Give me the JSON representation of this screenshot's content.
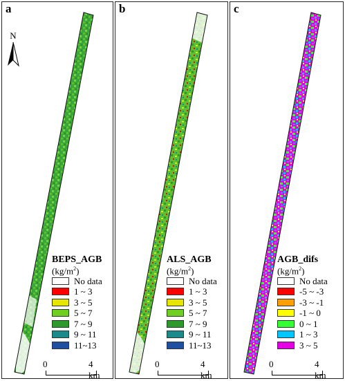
{
  "panels": [
    {
      "letter": "a",
      "legend_title": "BEPS_AGB",
      "legend_unit_base": "(kg/m",
      "legend_unit_sup": "2",
      "legend_unit_close": ")",
      "legend_items": [
        {
          "label": "No data",
          "color": "#ffffff"
        },
        {
          "label": "1 ~ 3",
          "color": "#ff0000"
        },
        {
          "label": "3 ~ 5",
          "color": "#e6e600"
        },
        {
          "label": "5 ~ 7",
          "color": "#70d020"
        },
        {
          "label": "7 ~ 9",
          "color": "#2e9a2e"
        },
        {
          "label": "9 ~ 11",
          "color": "#1a8a8a"
        },
        {
          "label": "11~13",
          "color": "#1f4fa0"
        }
      ],
      "scale": {
        "start": "0",
        "end": "4 km"
      }
    },
    {
      "letter": "b",
      "legend_title": "ALS_AGB",
      "legend_unit_base": "(kg/m",
      "legend_unit_sup": "2",
      "legend_unit_close": ")",
      "legend_items": [
        {
          "label": "No data",
          "color": "#ffffff"
        },
        {
          "label": "1 ~ 3",
          "color": "#ff0000"
        },
        {
          "label": "3 ~ 5",
          "color": "#e6e600"
        },
        {
          "label": "5 ~ 7",
          "color": "#70d020"
        },
        {
          "label": "7 ~ 9",
          "color": "#2e9a2e"
        },
        {
          "label": "9 ~ 11",
          "color": "#1a8a8a"
        },
        {
          "label": "11~13",
          "color": "#1f4fa0"
        }
      ],
      "scale": {
        "start": "0",
        "end": "4 km"
      }
    },
    {
      "letter": "c",
      "legend_title": "AGB_difs",
      "legend_unit_base": "(kg/m",
      "legend_unit_sup": "2",
      "legend_unit_close": ")",
      "legend_items": [
        {
          "label": "No data",
          "color": "#ffffff"
        },
        {
          "label": "-5 ~ -3",
          "color": "#ff0000"
        },
        {
          "label": "-3 ~ -1",
          "color": "#ffa000"
        },
        {
          "label": "-1 ~ 0",
          "color": "#ffff00"
        },
        {
          "label": "0 ~ 1",
          "color": "#33ff33"
        },
        {
          "label": "1 ~ 3",
          "color": "#00c8ff"
        },
        {
          "label": "3 ~ 5",
          "color": "#e600e6"
        }
      ],
      "scale": {
        "start": "0",
        "end": "4 km"
      }
    }
  ],
  "north_arrow": {
    "label": "N"
  }
}
